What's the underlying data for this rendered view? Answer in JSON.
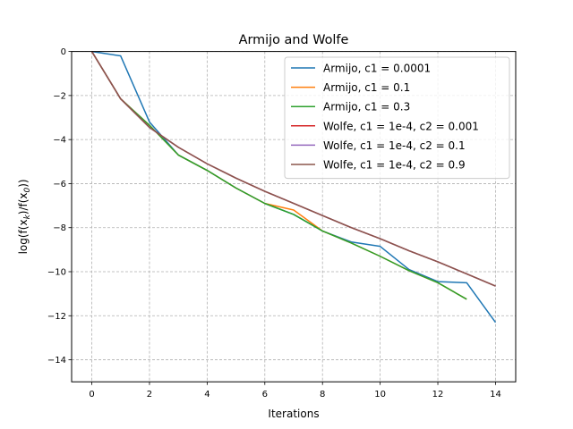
{
  "chart_data": {
    "type": "line",
    "title": "Armijo and Wolfe",
    "xlabel": "Iterations",
    "ylabel": "log(f(x_k)/f(x_0))",
    "xlim": [
      -0.7,
      14.7
    ],
    "ylim": [
      -15,
      0
    ],
    "xticks": [
      0,
      2,
      4,
      6,
      8,
      10,
      12,
      14
    ],
    "yticks": [
      0,
      -2,
      -4,
      -6,
      -8,
      -10,
      -12,
      -14
    ],
    "grid": true,
    "legend_position": "upper right",
    "series": [
      {
        "name": "Armijo, c1 = 0.0001",
        "color": "#1f77b4",
        "x": [
          0,
          1,
          2,
          3,
          4,
          5,
          6,
          7,
          8,
          9,
          10,
          11,
          12,
          13,
          14
        ],
        "y": [
          0,
          -0.2,
          -3.2,
          -4.7,
          -5.4,
          -6.2,
          -6.9,
          -7.4,
          -8.15,
          -8.65,
          -8.85,
          -9.9,
          -10.45,
          -10.5,
          -12.3
        ]
      },
      {
        "name": "Armijo, c1 = 0.1",
        "color": "#ff7f0e",
        "x": [
          0,
          1,
          2,
          3,
          4,
          5,
          6,
          7,
          8,
          9,
          10,
          11,
          12,
          13
        ],
        "y": [
          0,
          -2.15,
          -3.35,
          -4.7,
          -5.4,
          -6.2,
          -6.9,
          -7.2,
          -8.15,
          -8.7,
          -9.3,
          -9.95,
          -10.5,
          -11.25
        ]
      },
      {
        "name": "Armijo, c1 = 0.3",
        "color": "#2ca02c",
        "x": [
          0,
          1,
          2,
          3,
          4,
          5,
          6,
          7,
          8,
          9,
          10,
          11,
          12,
          13
        ],
        "y": [
          0,
          -2.15,
          -3.35,
          -4.7,
          -5.4,
          -6.2,
          -6.9,
          -7.4,
          -8.15,
          -8.7,
          -9.3,
          -9.95,
          -10.5,
          -11.25
        ]
      },
      {
        "name": "Wolfe, c1 = 1e-4, c2 = 0.001",
        "color": "#d62728",
        "x": [
          0,
          1,
          2,
          3,
          4,
          5,
          6,
          7,
          8,
          9,
          10,
          11,
          12,
          13,
          14
        ],
        "y": [
          0,
          -2.15,
          -3.45,
          -4.35,
          -5.1,
          -5.75,
          -6.35,
          -6.9,
          -7.45,
          -8.0,
          -8.5,
          -9.05,
          -9.55,
          -10.1,
          -10.65
        ]
      },
      {
        "name": "Wolfe, c1 = 1e-4, c2 = 0.1",
        "color": "#9467bd",
        "x": [
          0,
          1,
          2,
          3,
          4,
          5,
          6,
          7,
          8,
          9,
          10,
          11,
          12,
          13,
          14
        ],
        "y": [
          0,
          -2.15,
          -3.45,
          -4.35,
          -5.1,
          -5.75,
          -6.35,
          -6.9,
          -7.45,
          -8.0,
          -8.5,
          -9.05,
          -9.55,
          -10.1,
          -10.65
        ]
      },
      {
        "name": "Wolfe, c1 = 1e-4, c2 = 0.9",
        "color": "#8c564b",
        "x": [
          0,
          1,
          2,
          3,
          4,
          5,
          6,
          7,
          8,
          9,
          10,
          11,
          12,
          13,
          14
        ],
        "y": [
          0,
          -2.15,
          -3.45,
          -4.35,
          -5.1,
          -5.75,
          -6.35,
          -6.9,
          -7.45,
          -8.0,
          -8.5,
          -9.05,
          -9.55,
          -10.1,
          -10.65
        ]
      }
    ]
  }
}
